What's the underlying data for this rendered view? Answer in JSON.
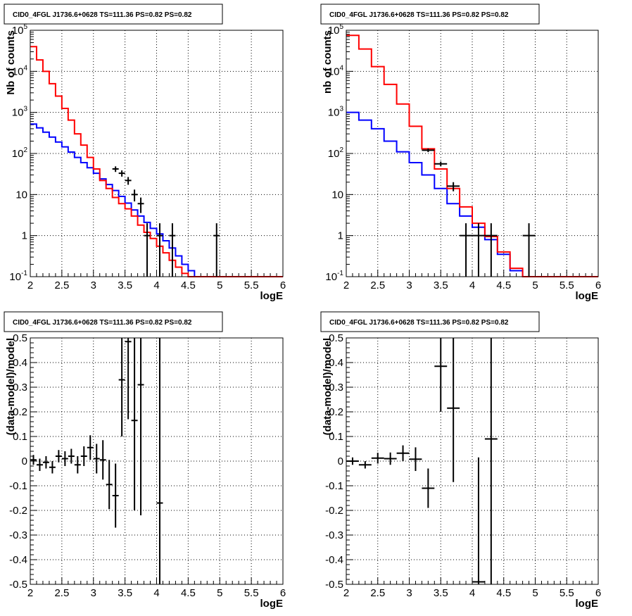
{
  "chart_data": [
    {
      "id": "tl",
      "type": "histogram-with-errorbars",
      "title": "CID0_4FGL J1736.6+0628 TS=111.36 PS=0.82 PS=0.82",
      "xlabel": "logE",
      "ylabel": "Nb of counts",
      "xlim": [
        2,
        6
      ],
      "ylim": [
        0.1,
        100000
      ],
      "yscale": "log",
      "grid": true,
      "xticks": [
        2,
        2.5,
        3,
        3.5,
        4,
        4.5,
        5,
        5.5,
        6
      ],
      "xtick_labels": [
        "2",
        "2.5",
        "3",
        "3.5",
        "4",
        "4.5",
        "5",
        "5.5",
        "6"
      ],
      "yticks": [
        0.1,
        1,
        10,
        100,
        1000,
        10000,
        100000
      ],
      "ytick_labels": [
        {
          "base": "10",
          "exp": "-1"
        },
        {
          "base": "1",
          "exp": ""
        },
        {
          "base": "10",
          "exp": ""
        },
        {
          "base": "10",
          "exp": "2"
        },
        {
          "base": "10",
          "exp": "3"
        },
        {
          "base": "10",
          "exp": "4"
        },
        {
          "base": "10",
          "exp": "5"
        }
      ],
      "series": [
        {
          "color": "#0000ff",
          "kind": "step",
          "bin_edges": [
            2.0,
            2.1,
            2.2,
            2.3,
            2.4,
            2.5,
            2.6,
            2.7,
            2.8,
            2.9,
            3.0,
            3.1,
            3.2,
            3.3,
            3.4,
            3.5,
            3.6,
            3.7,
            3.8,
            3.9,
            4.0,
            4.1,
            4.2,
            4.3,
            4.4,
            4.5,
            4.6,
            4.7,
            4.8,
            4.9,
            5.0,
            5.1,
            5.2,
            5.3,
            5.4,
            5.5,
            5.6,
            5.7,
            5.8,
            5.9,
            6.0
          ],
          "values": [
            520,
            420,
            330,
            250,
            190,
            145,
            108,
            80,
            60,
            45,
            33,
            24,
            17.5,
            12.5,
            9,
            6.2,
            4.2,
            3,
            2.1,
            1.5,
            1.1,
            0.75,
            0.5,
            0.32,
            0.2,
            0.14,
            0.1,
            0.1,
            0.1,
            0.1,
            0.1,
            0.1,
            0.1,
            0.1,
            0.1,
            0.1,
            0.1,
            0.1,
            0.1,
            0.1
          ]
        },
        {
          "color": "#ff0000",
          "kind": "step",
          "bin_edges": [
            2.0,
            2.1,
            2.2,
            2.3,
            2.4,
            2.5,
            2.6,
            2.7,
            2.8,
            2.9,
            3.0,
            3.1,
            3.2,
            3.3,
            3.4,
            3.5,
            3.6,
            3.7,
            3.8,
            3.9,
            4.0,
            4.1,
            4.2,
            4.3,
            4.4,
            4.5,
            4.6,
            4.7,
            4.8,
            4.9,
            5.0,
            5.1,
            5.2,
            5.3,
            5.4,
            5.5,
            5.6,
            5.7,
            5.8,
            5.9,
            6.0
          ],
          "values": [
            40000,
            19000,
            10000,
            5000,
            2500,
            1250,
            650,
            300,
            160,
            80,
            42,
            22,
            14,
            8.5,
            6,
            4.5,
            3,
            1.8,
            1.2,
            0.85,
            0.55,
            0.38,
            0.25,
            0.17,
            0.12,
            0.1,
            0.1,
            0.1,
            0.1,
            0.1,
            0.1,
            0.1,
            0.1,
            0.1,
            0.1,
            0.1,
            0.1,
            0.1,
            0.1,
            0.1
          ]
        },
        {
          "color": "#000000",
          "kind": "errorbar",
          "points": [
            {
              "x": 3.35,
              "y": 42,
              "lo": 35.5,
              "hi": 48.5
            },
            {
              "x": 3.45,
              "y": 33,
              "lo": 27.3,
              "hi": 38.7
            },
            {
              "x": 3.55,
              "y": 22,
              "lo": 17.3,
              "hi": 26.7
            },
            {
              "x": 3.65,
              "y": 10,
              "lo": 6.8,
              "hi": 13.2
            },
            {
              "x": 3.75,
              "y": 6,
              "lo": 3.55,
              "hi": 8.45
            },
            {
              "x": 3.85,
              "y": 1,
              "lo": 0.1,
              "hi": 2
            },
            {
              "x": 4.05,
              "y": 1,
              "lo": 0.1,
              "hi": 2
            },
            {
              "x": 4.25,
              "y": 1,
              "lo": 0.1,
              "hi": 2
            },
            {
              "x": 4.95,
              "y": 1,
              "lo": 0.1,
              "hi": 2
            }
          ],
          "xhalf": 0.05
        }
      ]
    },
    {
      "id": "tr",
      "type": "histogram-with-errorbars",
      "title": "CID0_4FGL J1736.6+0628 TS=111.36 PS=0.82 PS=0.82",
      "xlabel": "logE",
      "ylabel": "nb of counts",
      "xlim": [
        2,
        6
      ],
      "ylim": [
        0.1,
        100000
      ],
      "yscale": "log",
      "grid": true,
      "xticks": [
        2,
        2.5,
        3,
        3.5,
        4,
        4.5,
        5,
        5.5,
        6
      ],
      "xtick_labels": [
        "2",
        "2.5",
        "3",
        "3.5",
        "4",
        "4.5",
        "5",
        "5.5",
        "6"
      ],
      "yticks": [
        0.1,
        1,
        10,
        100,
        1000,
        10000,
        100000
      ],
      "ytick_labels": [
        {
          "base": "10",
          "exp": "-1"
        },
        {
          "base": "1",
          "exp": ""
        },
        {
          "base": "10",
          "exp": ""
        },
        {
          "base": "10",
          "exp": "2"
        },
        {
          "base": "10",
          "exp": "3"
        },
        {
          "base": "10",
          "exp": "4"
        },
        {
          "base": "10",
          "exp": "5"
        }
      ],
      "series": [
        {
          "color": "#0000ff",
          "kind": "step",
          "bin_edges": [
            2.0,
            2.2,
            2.4,
            2.6,
            2.8,
            3.0,
            3.2,
            3.4,
            3.6,
            3.8,
            4.0,
            4.2,
            4.4,
            4.6,
            4.8,
            5.0,
            5.2,
            5.4,
            5.6,
            5.8,
            6.0
          ],
          "values": [
            1000,
            650,
            400,
            200,
            110,
            60,
            30,
            14,
            6,
            3,
            1.6,
            0.8,
            0.35,
            0.14,
            0.1,
            0.1,
            0.1,
            0.1,
            0.1,
            0.1
          ]
        },
        {
          "color": "#ff0000",
          "kind": "step",
          "bin_edges": [
            2.0,
            2.2,
            2.4,
            2.6,
            2.8,
            3.0,
            3.2,
            3.4,
            3.6,
            3.8,
            4.0,
            4.2,
            4.4,
            4.6,
            4.8,
            5.0,
            5.2,
            5.4,
            5.6,
            5.8,
            6.0
          ],
          "values": [
            75000,
            35000,
            13000,
            4800,
            1600,
            460,
            130,
            42,
            14,
            5,
            2,
            0.95,
            0.4,
            0.16,
            0.1,
            0.1,
            0.1,
            0.1,
            0.1,
            0.1
          ]
        },
        {
          "color": "#000000",
          "kind": "errorbar",
          "points": [
            {
              "x": 3.3,
              "y": 120,
              "lo": 108,
              "hi": 132
            },
            {
              "x": 3.5,
              "y": 56,
              "lo": 48.5,
              "hi": 63.5
            },
            {
              "x": 3.7,
              "y": 16,
              "lo": 12,
              "hi": 20
            },
            {
              "x": 3.9,
              "y": 1,
              "lo": 0.1,
              "hi": 2
            },
            {
              "x": 4.1,
              "y": 1,
              "lo": 0.1,
              "hi": 2
            },
            {
              "x": 4.3,
              "y": 1,
              "lo": 0.1,
              "hi": 2
            },
            {
              "x": 4.9,
              "y": 1,
              "lo": 0.1,
              "hi": 2
            }
          ],
          "xhalf": 0.1
        }
      ]
    },
    {
      "id": "bl",
      "type": "errorbar",
      "title": "CID0_4FGL J1736.6+0628 TS=111.36 PS=0.82 PS=0.82",
      "xlabel": "logE",
      "ylabel": "(data-model)/model",
      "xlim": [
        2,
        6
      ],
      "ylim": [
        -0.5,
        0.5
      ],
      "yscale": "linear",
      "grid": true,
      "xticks": [
        2,
        2.5,
        3,
        3.5,
        4,
        4.5,
        5,
        5.5,
        6
      ],
      "xtick_labels": [
        "2",
        "2.5",
        "3",
        "3.5",
        "4",
        "4.5",
        "5",
        "5.5",
        "6"
      ],
      "yticks": [
        -0.5,
        -0.4,
        -0.3,
        -0.2,
        -0.1,
        0,
        0.1,
        0.2,
        0.3,
        0.4,
        0.5
      ],
      "ytick_labels": [
        {
          "base": "-0.5",
          "exp": ""
        },
        {
          "base": "-0.4",
          "exp": ""
        },
        {
          "base": "-0.3",
          "exp": ""
        },
        {
          "base": "-0.2",
          "exp": ""
        },
        {
          "base": "-0.1",
          "exp": ""
        },
        {
          "base": "0",
          "exp": ""
        },
        {
          "base": "0.1",
          "exp": ""
        },
        {
          "base": "0.2",
          "exp": ""
        },
        {
          "base": "0.3",
          "exp": ""
        },
        {
          "base": "0.4",
          "exp": ""
        },
        {
          "base": "0.5",
          "exp": ""
        }
      ],
      "series": [
        {
          "color": "#000000",
          "kind": "errorbar",
          "points": [
            {
              "x": 2.05,
              "y": 0.005,
              "lo": -0.015,
              "hi": 0.025
            },
            {
              "x": 2.15,
              "y": -0.015,
              "lo": -0.04,
              "hi": 0.01
            },
            {
              "x": 2.25,
              "y": -0.005,
              "lo": -0.03,
              "hi": 0.02
            },
            {
              "x": 2.35,
              "y": -0.025,
              "lo": -0.05,
              "hi": 0.0
            },
            {
              "x": 2.45,
              "y": 0.02,
              "lo": -0.005,
              "hi": 0.045
            },
            {
              "x": 2.55,
              "y": 0.01,
              "lo": -0.02,
              "hi": 0.04
            },
            {
              "x": 2.65,
              "y": 0.02,
              "lo": -0.01,
              "hi": 0.05
            },
            {
              "x": 2.75,
              "y": -0.015,
              "lo": -0.05,
              "hi": 0.02
            },
            {
              "x": 2.85,
              "y": 0.02,
              "lo": -0.02,
              "hi": 0.06
            },
            {
              "x": 2.95,
              "y": 0.055,
              "lo": 0.005,
              "hi": 0.105
            },
            {
              "x": 3.05,
              "y": 0.01,
              "lo": -0.05,
              "hi": 0.07
            },
            {
              "x": 3.15,
              "y": 0.005,
              "lo": -0.075,
              "hi": 0.085
            },
            {
              "x": 3.25,
              "y": -0.095,
              "lo": -0.195,
              "hi": 0.005
            },
            {
              "x": 3.35,
              "y": -0.14,
              "lo": -0.27,
              "hi": -0.01
            },
            {
              "x": 3.45,
              "y": 0.33,
              "lo": 0.1,
              "hi": 0.5
            },
            {
              "x": 3.55,
              "y": 0.485,
              "lo": 0.17,
              "hi": 0.5
            },
            {
              "x": 3.65,
              "y": 0.165,
              "lo": -0.2,
              "hi": 0.5
            },
            {
              "x": 3.75,
              "y": 0.31,
              "lo": -0.22,
              "hi": 0.5
            },
            {
              "x": 4.05,
              "y": -0.17,
              "lo": -0.5,
              "hi": 0.5
            }
          ],
          "xhalf": 0.05
        }
      ]
    },
    {
      "id": "br",
      "type": "errorbar",
      "title": "CID0_4FGL J1736.6+0628 TS=111.36 PS=0.82 PS=0.82",
      "xlabel": "logE",
      "ylabel": "(data-model)/model",
      "xlim": [
        2,
        6
      ],
      "ylim": [
        -0.5,
        0.5
      ],
      "yscale": "linear",
      "grid": true,
      "xticks": [
        2,
        2.5,
        3,
        3.5,
        4,
        4.5,
        5,
        5.5,
        6
      ],
      "xtick_labels": [
        "2",
        "2.5",
        "3",
        "3.5",
        "4",
        "4.5",
        "5",
        "5.5",
        "6"
      ],
      "yticks": [
        -0.5,
        -0.4,
        -0.3,
        -0.2,
        -0.1,
        0,
        0.1,
        0.2,
        0.3,
        0.4,
        0.5
      ],
      "ytick_labels": [
        {
          "base": "-0.5",
          "exp": ""
        },
        {
          "base": "-0.4",
          "exp": ""
        },
        {
          "base": "-0.3",
          "exp": ""
        },
        {
          "base": "-0.2",
          "exp": ""
        },
        {
          "base": "-0.1",
          "exp": ""
        },
        {
          "base": "0",
          "exp": ""
        },
        {
          "base": "0.1",
          "exp": ""
        },
        {
          "base": "0.2",
          "exp": ""
        },
        {
          "base": "0.3",
          "exp": ""
        },
        {
          "base": "0.4",
          "exp": ""
        },
        {
          "base": "0.5",
          "exp": ""
        }
      ],
      "series": [
        {
          "color": "#000000",
          "kind": "errorbar",
          "points": [
            {
              "x": 2.1,
              "y": 0.0,
              "lo": -0.015,
              "hi": 0.015
            },
            {
              "x": 2.3,
              "y": -0.015,
              "lo": -0.03,
              "hi": 0.0
            },
            {
              "x": 2.5,
              "y": 0.012,
              "lo": -0.01,
              "hi": 0.034
            },
            {
              "x": 2.7,
              "y": 0.01,
              "lo": -0.015,
              "hi": 0.035
            },
            {
              "x": 2.9,
              "y": 0.032,
              "lo": 0.0,
              "hi": 0.064
            },
            {
              "x": 3.1,
              "y": 0.008,
              "lo": -0.04,
              "hi": 0.056
            },
            {
              "x": 3.3,
              "y": -0.11,
              "lo": -0.19,
              "hi": -0.03
            },
            {
              "x": 3.5,
              "y": 0.385,
              "lo": 0.2,
              "hi": 0.5
            },
            {
              "x": 3.7,
              "y": 0.215,
              "lo": -0.085,
              "hi": 0.5
            },
            {
              "x": 4.1,
              "y": -0.49,
              "lo": -0.5,
              "hi": 0.015
            },
            {
              "x": 4.3,
              "y": 0.09,
              "lo": -0.5,
              "hi": 0.5
            }
          ],
          "xhalf": 0.1
        }
      ]
    }
  ]
}
